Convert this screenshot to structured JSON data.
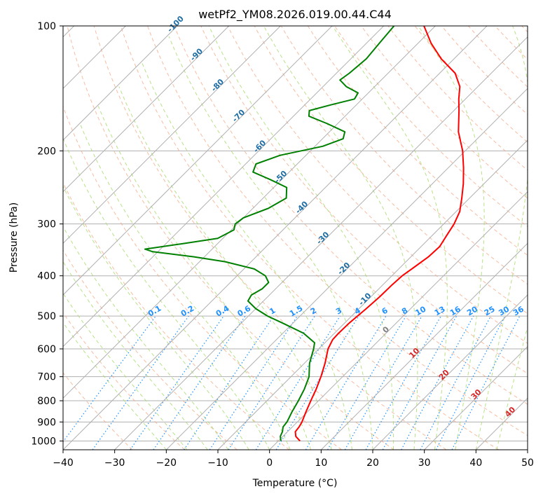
{
  "chart_data": {
    "type": "line",
    "title": "wetPf2_YM08.2026.019.00.44.C44",
    "xlabel": "Temperature (°C)",
    "ylabel": "Pressure (hPa)",
    "xlim": [
      -40,
      50
    ],
    "ylim": [
      1050,
      100
    ],
    "x_ticks": [
      -40,
      -30,
      -20,
      -10,
      0,
      10,
      20,
      30,
      40,
      50
    ],
    "y_ticks": [
      1000,
      900,
      800,
      700,
      600,
      500,
      400,
      300,
      200,
      100
    ],
    "grid": true,
    "colors": {
      "temperature": "#ff0000",
      "dewpoint": "#008000",
      "isotherm": "#b0b0b0",
      "dry_adiabat": "#f4a582",
      "moist_adiabat": "#a6d96a",
      "mixing_ratio": "#1e90ff",
      "isotherm_label": "#1f6fa6",
      "moist_label": "#d62728",
      "zero_label": "#808080"
    },
    "series": [
      {
        "name": "Temperature",
        "points": [
          {
            "p": 1000,
            "t": 4.2
          },
          {
            "p": 975,
            "t": 2.5
          },
          {
            "p": 950,
            "t": 1.5
          },
          {
            "p": 925,
            "t": 1.3
          },
          {
            "p": 900,
            "t": 0.9
          },
          {
            "p": 850,
            "t": -0.3
          },
          {
            "p": 800,
            "t": -1.5
          },
          {
            "p": 750,
            "t": -2.7
          },
          {
            "p": 700,
            "t": -4.2
          },
          {
            "p": 650,
            "t": -6.0
          },
          {
            "p": 600,
            "t": -8.2
          },
          {
            "p": 570,
            "t": -9.1
          },
          {
            "p": 550,
            "t": -9.2
          },
          {
            "p": 520,
            "t": -9.1
          },
          {
            "p": 480,
            "t": -8.6
          },
          {
            "p": 450,
            "t": -8.3
          },
          {
            "p": 420,
            "t": -8.2
          },
          {
            "p": 400,
            "t": -8.0
          },
          {
            "p": 380,
            "t": -7.3
          },
          {
            "p": 360,
            "t": -6.6
          },
          {
            "p": 340,
            "t": -6.4
          },
          {
            "p": 320,
            "t": -7.2
          },
          {
            "p": 300,
            "t": -8.0
          },
          {
            "p": 280,
            "t": -9.3
          },
          {
            "p": 260,
            "t": -11.5
          },
          {
            "p": 240,
            "t": -14.0
          },
          {
            "p": 220,
            "t": -17.0
          },
          {
            "p": 200,
            "t": -20.5
          },
          {
            "p": 180,
            "t": -25.0
          },
          {
            "p": 160,
            "t": -29.0
          },
          {
            "p": 150,
            "t": -31.3
          },
          {
            "p": 140,
            "t": -33.5
          },
          {
            "p": 130,
            "t": -37.0
          },
          {
            "p": 120,
            "t": -42.5
          },
          {
            "p": 110,
            "t": -47.5
          },
          {
            "p": 100,
            "t": -52.2
          }
        ]
      },
      {
        "name": "Dewpoint",
        "points": [
          {
            "p": 1000,
            "t": 0.5
          },
          {
            "p": 975,
            "t": -0.5
          },
          {
            "p": 950,
            "t": -1.0
          },
          {
            "p": 925,
            "t": -1.8
          },
          {
            "p": 900,
            "t": -2.0
          },
          {
            "p": 850,
            "t": -3.0
          },
          {
            "p": 800,
            "t": -3.9
          },
          {
            "p": 750,
            "t": -5.0
          },
          {
            "p": 700,
            "t": -6.5
          },
          {
            "p": 650,
            "t": -9.0
          },
          {
            "p": 600,
            "t": -11.0
          },
          {
            "p": 580,
            "t": -12.0
          },
          {
            "p": 550,
            "t": -16.0
          },
          {
            "p": 520,
            "t": -22.0
          },
          {
            "p": 500,
            "t": -26.3
          },
          {
            "p": 480,
            "t": -30.0
          },
          {
            "p": 460,
            "t": -33.0
          },
          {
            "p": 445,
            "t": -33.5
          },
          {
            "p": 430,
            "t": -32.6
          },
          {
            "p": 415,
            "t": -32.6
          },
          {
            "p": 400,
            "t": -34.5
          },
          {
            "p": 385,
            "t": -38.0
          },
          {
            "p": 370,
            "t": -45.0
          },
          {
            "p": 360,
            "t": -52.0
          },
          {
            "p": 350,
            "t": -61.0
          },
          {
            "p": 345,
            "t": -63.0
          },
          {
            "p": 335,
            "t": -57.0
          },
          {
            "p": 325,
            "t": -51.0
          },
          {
            "p": 310,
            "t": -49.5
          },
          {
            "p": 300,
            "t": -50.4
          },
          {
            "p": 290,
            "t": -50.0
          },
          {
            "p": 275,
            "t": -47.0
          },
          {
            "p": 260,
            "t": -45.5
          },
          {
            "p": 245,
            "t": -47.5
          },
          {
            "p": 235,
            "t": -52.0
          },
          {
            "p": 225,
            "t": -57.0
          },
          {
            "p": 215,
            "t": -58.0
          },
          {
            "p": 205,
            "t": -55.0
          },
          {
            "p": 195,
            "t": -48.5
          },
          {
            "p": 187,
            "t": -46.0
          },
          {
            "p": 180,
            "t": -47.0
          },
          {
            "p": 172,
            "t": -52.0
          },
          {
            "p": 165,
            "t": -57.0
          },
          {
            "p": 160,
            "t": -58.0
          },
          {
            "p": 155,
            "t": -55.0
          },
          {
            "p": 150,
            "t": -51.5
          },
          {
            "p": 145,
            "t": -52.0
          },
          {
            "p": 140,
            "t": -55.5
          },
          {
            "p": 135,
            "t": -58.0
          },
          {
            "p": 130,
            "t": -57.5
          },
          {
            "p": 120,
            "t": -57.0
          },
          {
            "p": 110,
            "t": -57.5
          },
          {
            "p": 100,
            "t": -58.0
          }
        ]
      }
    ],
    "isotherm_labels": [
      {
        "t": -100,
        "text": "-100"
      },
      {
        "t": -90,
        "text": "-90"
      },
      {
        "t": -80,
        "text": "-80"
      },
      {
        "t": -70,
        "text": "-70"
      },
      {
        "t": -60,
        "text": "-60"
      },
      {
        "t": -50,
        "text": "-50"
      },
      {
        "t": -40,
        "text": "-40"
      },
      {
        "t": -30,
        "text": "-30"
      },
      {
        "t": -20,
        "text": "-20"
      },
      {
        "t": -10,
        "text": "-10"
      }
    ],
    "mixing_ratio_labels": [
      "0.1",
      "0.2",
      "0.4",
      "0.6",
      "1",
      "1.5",
      "2",
      "3",
      "4",
      "6",
      "8",
      "10",
      "13",
      "16",
      "20",
      "25",
      "30",
      "36"
    ],
    "moist_adiabat_labels": [
      "0",
      "10",
      "20",
      "30",
      "40"
    ]
  }
}
